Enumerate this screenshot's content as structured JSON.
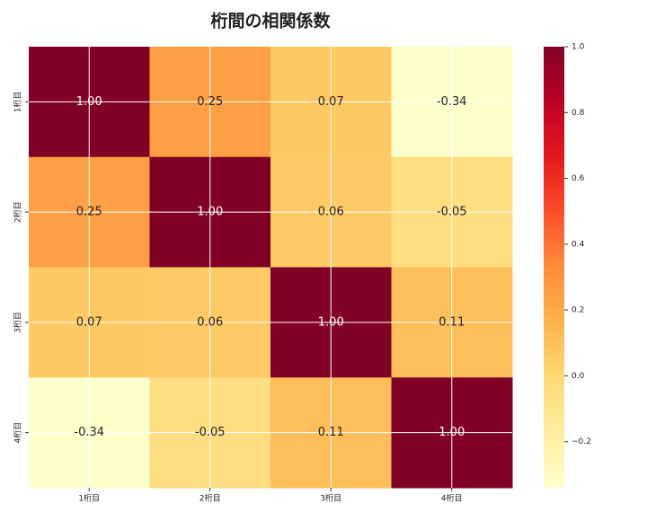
{
  "chart_data": {
    "type": "heatmap",
    "title": "桁間の相関係数",
    "x_categories": [
      "1桁目",
      "2桁目",
      "3桁目",
      "4桁目"
    ],
    "y_categories": [
      "1桁目",
      "2桁目",
      "3桁目",
      "4桁目"
    ],
    "values": [
      [
        1.0,
        0.25,
        0.07,
        -0.34
      ],
      [
        0.25,
        1.0,
        0.06,
        -0.05
      ],
      [
        0.07,
        0.06,
        1.0,
        0.11
      ],
      [
        -0.34,
        -0.05,
        0.11,
        1.0
      ]
    ],
    "value_labels": [
      [
        "1.00",
        "0.25",
        "0.07",
        "-0.34"
      ],
      [
        "0.25",
        "1.00",
        "0.06",
        "-0.05"
      ],
      [
        "0.07",
        "0.06",
        "1.00",
        "0.11"
      ],
      [
        "-0.34",
        "-0.05",
        "0.11",
        "1.00"
      ]
    ],
    "colormap": "YlOrRd",
    "colorbar_lim": [
      -0.34,
      1.0
    ],
    "colorbar_ticks": [
      {
        "value": -0.2,
        "label": "−0.2"
      },
      {
        "value": 0.0,
        "label": "0.0"
      },
      {
        "value": 0.2,
        "label": "0.2"
      },
      {
        "value": 0.4,
        "label": "0.4"
      },
      {
        "value": 0.6,
        "label": "0.6"
      },
      {
        "value": 0.8,
        "label": "0.8"
      },
      {
        "value": 1.0,
        "label": "1.0"
      }
    ],
    "grid": true
  }
}
